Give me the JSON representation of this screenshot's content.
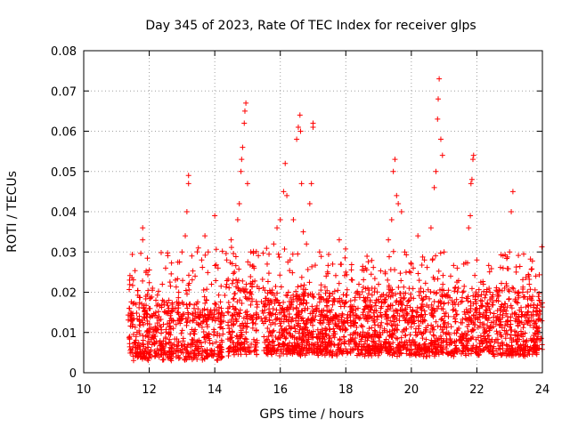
{
  "chart_data": {
    "type": "scatter",
    "title": "Day 345 of 2023, Rate Of TEC Index for receiver glps",
    "xlabel": "GPS time / hours",
    "ylabel": "ROTI / TECUs",
    "xlim": [
      10,
      24
    ],
    "ylim": [
      0,
      0.08
    ],
    "x_ticks": [
      "10",
      "12",
      "14",
      "16",
      "18",
      "20",
      "22",
      "24"
    ],
    "y_ticks": [
      "0",
      "0.01",
      "0.02",
      "0.03",
      "0.04",
      "0.05",
      "0.06",
      "0.07",
      "0.08"
    ],
    "grid": true,
    "marker": "plus",
    "color": "#ff0000",
    "series": [
      {
        "name": "ROTI",
        "points": [
          [
            11.4,
            0.023
          ],
          [
            11.4,
            0.016
          ],
          [
            11.5,
            0.012
          ],
          [
            11.6,
            0.009
          ],
          [
            11.7,
            0.014
          ],
          [
            11.8,
            0.036
          ],
          [
            11.8,
            0.033
          ],
          [
            11.9,
            0.019
          ],
          [
            12.0,
            0.011
          ],
          [
            12.1,
            0.021
          ],
          [
            12.2,
            0.015
          ],
          [
            12.3,
            0.013
          ],
          [
            12.4,
            0.022
          ],
          [
            12.5,
            0.026
          ],
          [
            12.6,
            0.018
          ],
          [
            12.7,
            0.017
          ],
          [
            12.8,
            0.023
          ],
          [
            12.9,
            0.02
          ],
          [
            13.0,
            0.03
          ],
          [
            13.1,
            0.034
          ],
          [
            13.15,
            0.04
          ],
          [
            13.2,
            0.047
          ],
          [
            13.2,
            0.049
          ],
          [
            13.3,
            0.029
          ],
          [
            13.4,
            0.024
          ],
          [
            13.5,
            0.031
          ],
          [
            13.6,
            0.028
          ],
          [
            13.7,
            0.034
          ],
          [
            13.8,
            0.03
          ],
          [
            13.9,
            0.022
          ],
          [
            14.0,
            0.039
          ],
          [
            14.1,
            0.026
          ],
          [
            14.2,
            0.016
          ],
          [
            14.5,
            0.033
          ],
          [
            14.6,
            0.025
          ],
          [
            14.7,
            0.038
          ],
          [
            14.75,
            0.042
          ],
          [
            14.8,
            0.05
          ],
          [
            14.82,
            0.053
          ],
          [
            14.85,
            0.056
          ],
          [
            14.9,
            0.062
          ],
          [
            14.92,
            0.065
          ],
          [
            14.95,
            0.067
          ],
          [
            15.0,
            0.047
          ],
          [
            15.1,
            0.03
          ],
          [
            15.2,
            0.026
          ],
          [
            15.6,
            0.027
          ],
          [
            15.8,
            0.032
          ],
          [
            15.9,
            0.036
          ],
          [
            16.0,
            0.038
          ],
          [
            16.1,
            0.045
          ],
          [
            16.15,
            0.052
          ],
          [
            16.2,
            0.044
          ],
          [
            16.3,
            0.028
          ],
          [
            16.4,
            0.038
          ],
          [
            16.5,
            0.058
          ],
          [
            16.55,
            0.061
          ],
          [
            16.6,
            0.064
          ],
          [
            16.62,
            0.06
          ],
          [
            16.65,
            0.047
          ],
          [
            16.7,
            0.035
          ],
          [
            16.8,
            0.032
          ],
          [
            16.9,
            0.042
          ],
          [
            16.95,
            0.047
          ],
          [
            17.0,
            0.062
          ],
          [
            17.0,
            0.061
          ],
          [
            17.2,
            0.03
          ],
          [
            17.4,
            0.024
          ],
          [
            17.6,
            0.027
          ],
          [
            17.8,
            0.033
          ],
          [
            18.0,
            0.025
          ],
          [
            18.2,
            0.023
          ],
          [
            18.4,
            0.022
          ],
          [
            18.6,
            0.026
          ],
          [
            18.8,
            0.021
          ],
          [
            19.0,
            0.022
          ],
          [
            19.2,
            0.025
          ],
          [
            19.3,
            0.033
          ],
          [
            19.4,
            0.038
          ],
          [
            19.45,
            0.05
          ],
          [
            19.5,
            0.053
          ],
          [
            19.55,
            0.044
          ],
          [
            19.6,
            0.042
          ],
          [
            19.7,
            0.04
          ],
          [
            19.8,
            0.03
          ],
          [
            20.0,
            0.027
          ],
          [
            20.2,
            0.034
          ],
          [
            20.4,
            0.028
          ],
          [
            20.6,
            0.036
          ],
          [
            20.7,
            0.046
          ],
          [
            20.75,
            0.05
          ],
          [
            20.8,
            0.063
          ],
          [
            20.82,
            0.068
          ],
          [
            20.85,
            0.073
          ],
          [
            20.9,
            0.058
          ],
          [
            20.95,
            0.054
          ],
          [
            21.0,
            0.03
          ],
          [
            21.2,
            0.024
          ],
          [
            21.4,
            0.026
          ],
          [
            21.6,
            0.027
          ],
          [
            21.75,
            0.036
          ],
          [
            21.8,
            0.039
          ],
          [
            21.82,
            0.047
          ],
          [
            21.85,
            0.048
          ],
          [
            21.88,
            0.053
          ],
          [
            21.9,
            0.054
          ],
          [
            22.0,
            0.028
          ],
          [
            22.2,
            0.022
          ],
          [
            22.4,
            0.02
          ],
          [
            22.6,
            0.018
          ],
          [
            22.8,
            0.026
          ],
          [
            23.0,
            0.03
          ],
          [
            23.05,
            0.04
          ],
          [
            23.1,
            0.045
          ],
          [
            23.2,
            0.025
          ],
          [
            23.4,
            0.02
          ],
          [
            23.6,
            0.022
          ],
          [
            23.8,
            0.024
          ],
          [
            23.9,
            0.018
          ]
        ],
        "density_bands": [
          {
            "x_range": [
              11.35,
              14.25
            ],
            "y_range": [
              0.003,
              0.017
            ],
            "count": 520
          },
          {
            "x_range": [
              14.4,
              15.3
            ],
            "y_range": [
              0.004,
              0.022
            ],
            "count": 170
          },
          {
            "x_range": [
              15.5,
              24.0
            ],
            "y_range": [
              0.004,
              0.02
            ],
            "count": 1700
          },
          {
            "x_range": [
              11.35,
              24.0
            ],
            "y_range": [
              0.012,
              0.03
            ],
            "count": 600
          }
        ]
      }
    ]
  }
}
